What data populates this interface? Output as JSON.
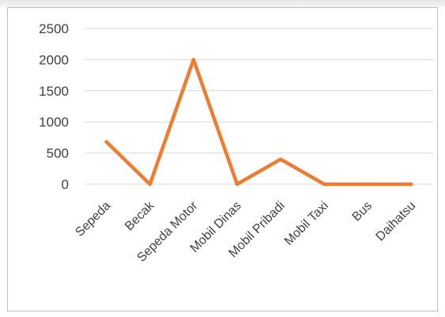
{
  "chart_data": {
    "type": "line",
    "categories": [
      "Sepeda",
      "Becak",
      "Sepeda Motor",
      "Mobil Dinas",
      "Mobil Pribadi",
      "Mobil Taxi",
      "Bus",
      "Daihatsu"
    ],
    "series": [
      {
        "values": [
          680,
          0,
          2000,
          0,
          400,
          0,
          0,
          0
        ],
        "color": "#ed7d31"
      }
    ],
    "yticks": [
      "0",
      "500",
      "1000",
      "1500",
      "2000",
      "2500"
    ],
    "ylim": [
      0,
      2500
    ],
    "grid": true,
    "legend": "none",
    "colors": {
      "gridline": "#d9d9d9",
      "text": "#404040",
      "frame": "#bfbfbf"
    }
  }
}
